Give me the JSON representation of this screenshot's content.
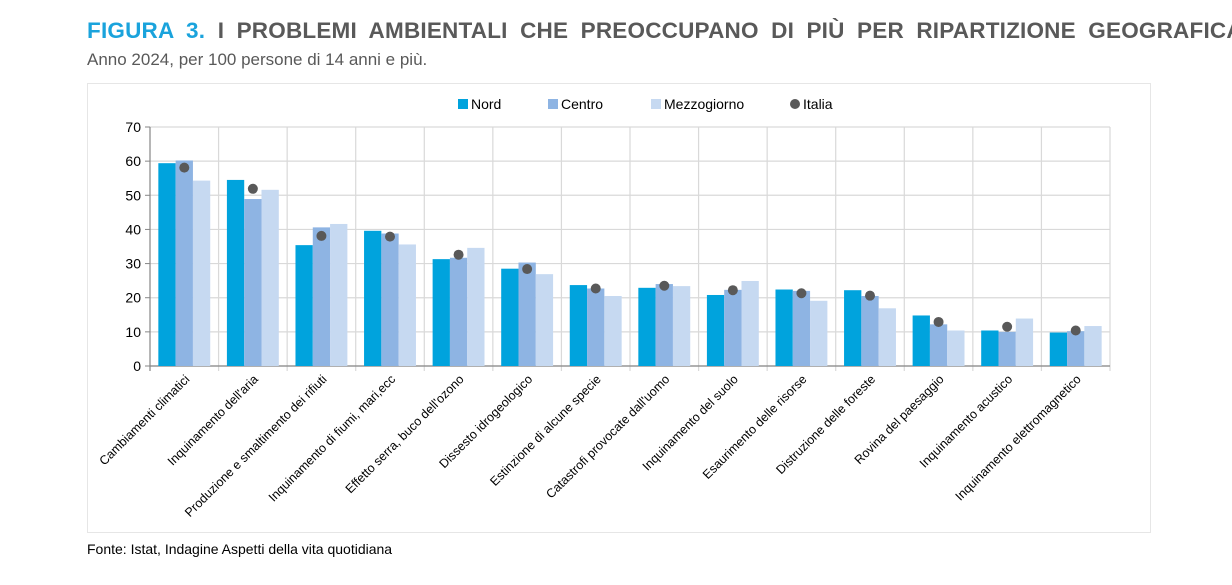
{
  "header": {
    "figure_label": "FIGURA 3.",
    "title": "I PROBLEMI AMBIENTALI CHE PREOCCUPANO DI PIÙ PER RIPARTIZIONE GEOGRAFICA.",
    "subtitle": "Anno 2024, per 100 persone di 14 anni e più."
  },
  "footer": {
    "source": "Fonte: Istat, Indagine Aspetti della vita quotidiana"
  },
  "chart_data": {
    "type": "bar",
    "title": "",
    "xlabel": "",
    "ylabel": "",
    "ylim": [
      0,
      70
    ],
    "yticks": [
      0,
      10,
      20,
      30,
      40,
      50,
      60,
      70
    ],
    "grid": true,
    "legend_position": "top",
    "categories": [
      "Cambiamenti climatici",
      "Inquinamento dell'aria",
      "Produzione e smaltimento dei rifiuti",
      "Inquinamento di fiumi, mari,ecc",
      "Effetto serra, buco dell'ozono",
      "Dissesto idrogeologico",
      "Estinzione di alcune specie",
      "Catastrofi provocate dall'uomo",
      "Inquinamento del suolo",
      "Esaurimento delle risorse",
      "Distruzione delle foreste",
      "Rovina del paesaggio",
      "Inquinamento acustico",
      "Inquinamento elettromagnetico"
    ],
    "series": [
      {
        "name": "Nord",
        "kind": "bar",
        "color": "#00a3dd",
        "values": [
          59.4,
          54.5,
          35.4,
          39.6,
          31.3,
          28.5,
          23.7,
          22.9,
          20.8,
          22.4,
          22.2,
          14.8,
          10.4,
          9.8
        ]
      },
      {
        "name": "Centro",
        "kind": "bar",
        "color": "#8eb4e3",
        "values": [
          60.2,
          48.9,
          40.6,
          38.8,
          31.7,
          30.3,
          22.7,
          24.0,
          22.3,
          22.0,
          20.5,
          12.2,
          10.0,
          10.2
        ]
      },
      {
        "name": "Mezzogiorno",
        "kind": "bar",
        "color": "#c6d9f1",
        "values": [
          54.3,
          51.6,
          41.6,
          35.6,
          34.6,
          26.9,
          20.5,
          23.4,
          24.9,
          19.1,
          16.9,
          10.4,
          13.9,
          11.7
        ]
      },
      {
        "name": "Italia",
        "kind": "dot",
        "color": "#595959",
        "values": [
          58.1,
          51.9,
          38.1,
          37.9,
          32.6,
          28.4,
          22.7,
          23.5,
          22.2,
          21.3,
          20.6,
          12.9,
          11.5,
          10.4
        ]
      }
    ]
  }
}
